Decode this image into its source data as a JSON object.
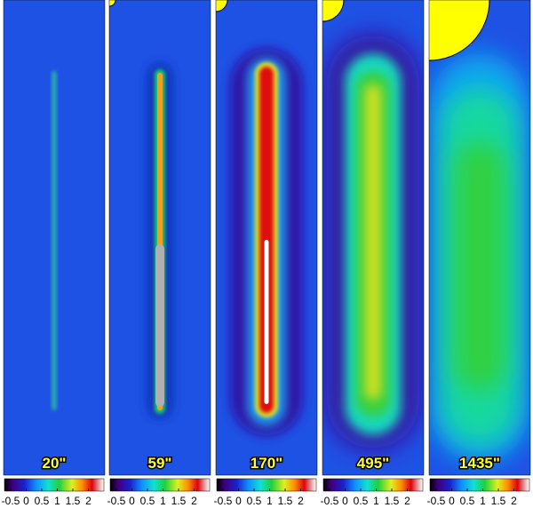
{
  "panels": [
    {
      "label": "20\""
    },
    {
      "label": "59\""
    },
    {
      "label": "170\""
    },
    {
      "label": "495\""
    },
    {
      "label": "1435\""
    }
  ],
  "colorbar": {
    "range": [
      -0.7,
      2.5
    ],
    "ticks": [
      -0.5,
      0,
      0.5,
      1,
      1.5,
      2
    ]
  }
}
